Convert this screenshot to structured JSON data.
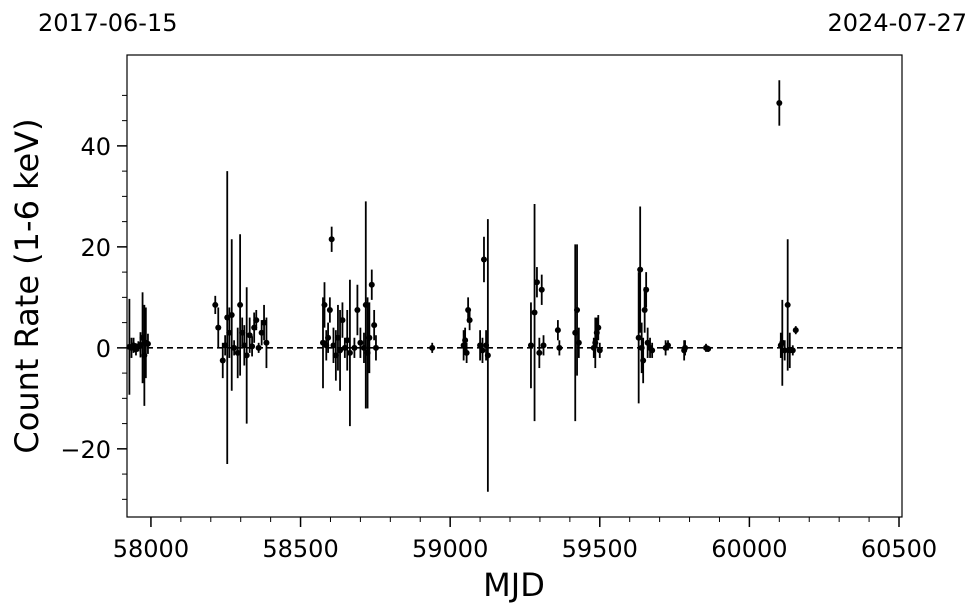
{
  "chart_data": {
    "type": "scatter",
    "title": "",
    "xlabel": "MJD",
    "ylabel": "Count Rate (1-6 keV)",
    "xlim": [
      57920,
      60510
    ],
    "ylim": [
      -33.5,
      58
    ],
    "xticks": [
      58000,
      58500,
      59000,
      59500,
      60000,
      60500
    ],
    "yticks": [
      -20,
      0,
      20,
      40
    ],
    "ytick_labels": [
      "−20",
      "0",
      "20",
      "40"
    ],
    "top_left_date": "2017-06-15",
    "top_right_date": "2024-07-27",
    "reference_line": {
      "y": 0,
      "style": "dashed"
    },
    "grid": false,
    "marker_color": "#000000",
    "points": [
      {
        "x": 57928,
        "y": 0.2,
        "err": 9.5
      },
      {
        "x": 57935,
        "y": 0.0,
        "err": 2.0
      },
      {
        "x": 57942,
        "y": 0.5,
        "err": 1.5
      },
      {
        "x": 57950,
        "y": -0.3,
        "err": 1.2
      },
      {
        "x": 57958,
        "y": 0.3,
        "err": 1.0
      },
      {
        "x": 57965,
        "y": 0.6,
        "err": 2.5
      },
      {
        "x": 57972,
        "y": 2.0,
        "err": 9.0
      },
      {
        "x": 57978,
        "y": -1.5,
        "err": 10.0
      },
      {
        "x": 57983,
        "y": 1.0,
        "err": 7.0
      },
      {
        "x": 57990,
        "y": 0.8,
        "err": 2.0
      },
      {
        "x": 58215,
        "y": 8.5,
        "err": 1.8
      },
      {
        "x": 58225,
        "y": 4.0,
        "err": 4.0
      },
      {
        "x": 58240,
        "y": -2.5,
        "err": 3.5
      },
      {
        "x": 58248,
        "y": 0.5,
        "err": 2.0
      },
      {
        "x": 58255,
        "y": 6.0,
        "err": 29.0
      },
      {
        "x": 58262,
        "y": 3.0,
        "err": 5.0
      },
      {
        "x": 58270,
        "y": 6.5,
        "err": 15.0
      },
      {
        "x": 58278,
        "y": 0.0,
        "err": 1.5
      },
      {
        "x": 58290,
        "y": -1.0,
        "err": 5.0
      },
      {
        "x": 58298,
        "y": 8.5,
        "err": 14.0
      },
      {
        "x": 58305,
        "y": 3.0,
        "err": 3.0
      },
      {
        "x": 58312,
        "y": 0.5,
        "err": 4.0
      },
      {
        "x": 58320,
        "y": -1.5,
        "err": 13.5
      },
      {
        "x": 58330,
        "y": 2.5,
        "err": 3.5
      },
      {
        "x": 58338,
        "y": 0.3,
        "err": 2.0
      },
      {
        "x": 58345,
        "y": 4.0,
        "err": 3.0
      },
      {
        "x": 58352,
        "y": 5.5,
        "err": 2.0
      },
      {
        "x": 58360,
        "y": 0.0,
        "err": 1.0
      },
      {
        "x": 58370,
        "y": 3.0,
        "err": 2.5
      },
      {
        "x": 58378,
        "y": 5.0,
        "err": 3.5
      },
      {
        "x": 58386,
        "y": 1.0,
        "err": 5.0
      },
      {
        "x": 58575,
        "y": 1.0,
        "err": 9.0
      },
      {
        "x": 58580,
        "y": 8.5,
        "err": 4.5
      },
      {
        "x": 58586,
        "y": 0.5,
        "err": 3.0
      },
      {
        "x": 58592,
        "y": 2.0,
        "err": 3.0
      },
      {
        "x": 58598,
        "y": 7.5,
        "err": 2.5
      },
      {
        "x": 58604,
        "y": 21.5,
        "err": 2.5
      },
      {
        "x": 58610,
        "y": 0.5,
        "err": 3.5
      },
      {
        "x": 58618,
        "y": -1.5,
        "err": 5.0
      },
      {
        "x": 58625,
        "y": 2.0,
        "err": 6.5
      },
      {
        "x": 58632,
        "y": -0.5,
        "err": 8.0
      },
      {
        "x": 58640,
        "y": 5.5,
        "err": 3.5
      },
      {
        "x": 58648,
        "y": 0.0,
        "err": 2.0
      },
      {
        "x": 58656,
        "y": 1.5,
        "err": 6.0
      },
      {
        "x": 58665,
        "y": -1.0,
        "err": 14.5
      },
      {
        "x": 58680,
        "y": 0.0,
        "err": 2.0
      },
      {
        "x": 58690,
        "y": 7.5,
        "err": 5.0
      },
      {
        "x": 58700,
        "y": 1.0,
        "err": 3.0
      },
      {
        "x": 58712,
        "y": 0.0,
        "err": 3.0
      },
      {
        "x": 58718,
        "y": 8.5,
        "err": 20.5
      },
      {
        "x": 58724,
        "y": -1.0,
        "err": 11.0
      },
      {
        "x": 58730,
        "y": 2.0,
        "err": 7.0
      },
      {
        "x": 58738,
        "y": 12.5,
        "err": 3.0
      },
      {
        "x": 58746,
        "y": 4.5,
        "err": 3.0
      },
      {
        "x": 58752,
        "y": 0.0,
        "err": 2.5
      },
      {
        "x": 58940,
        "y": 0.0,
        "err": 1.0
      },
      {
        "x": 59045,
        "y": 0.5,
        "err": 3.0
      },
      {
        "x": 59050,
        "y": 1.5,
        "err": 2.5
      },
      {
        "x": 59055,
        "y": -1.0,
        "err": 2.0
      },
      {
        "x": 59060,
        "y": 7.5,
        "err": 2.5
      },
      {
        "x": 59065,
        "y": 5.5,
        "err": 2.0
      },
      {
        "x": 59100,
        "y": 0.5,
        "err": 3.0
      },
      {
        "x": 59108,
        "y": -0.5,
        "err": 2.5
      },
      {
        "x": 59113,
        "y": 17.5,
        "err": 4.5
      },
      {
        "x": 59120,
        "y": 0.5,
        "err": 3.0
      },
      {
        "x": 59126,
        "y": -1.5,
        "err": 27.0
      },
      {
        "x": 59270,
        "y": 0.5,
        "err": 8.5
      },
      {
        "x": 59282,
        "y": 7.0,
        "err": 21.5
      },
      {
        "x": 59290,
        "y": 13.0,
        "err": 3.0
      },
      {
        "x": 59298,
        "y": -1.0,
        "err": 3.0
      },
      {
        "x": 59306,
        "y": 11.5,
        "err": 3.0
      },
      {
        "x": 59312,
        "y": 0.5,
        "err": 2.0
      },
      {
        "x": 59360,
        "y": 3.5,
        "err": 2.0
      },
      {
        "x": 59365,
        "y": 0.0,
        "err": 1.5
      },
      {
        "x": 59418,
        "y": 3.0,
        "err": 17.5
      },
      {
        "x": 59424,
        "y": 7.5,
        "err": 13.0
      },
      {
        "x": 59430,
        "y": 1.0,
        "err": 3.0
      },
      {
        "x": 59480,
        "y": 0.0,
        "err": 2.0
      },
      {
        "x": 59485,
        "y": 1.0,
        "err": 5.0
      },
      {
        "x": 59490,
        "y": 3.0,
        "err": 3.0
      },
      {
        "x": 59495,
        "y": 4.0,
        "err": 2.5
      },
      {
        "x": 59500,
        "y": -0.5,
        "err": 1.5
      },
      {
        "x": 59630,
        "y": 2.0,
        "err": 13.0
      },
      {
        "x": 59635,
        "y": 15.5,
        "err": 12.5
      },
      {
        "x": 59640,
        "y": 0.0,
        "err": 5.0
      },
      {
        "x": 59645,
        "y": -2.5,
        "err": 4.5
      },
      {
        "x": 59650,
        "y": 7.5,
        "err": 4.5
      },
      {
        "x": 59655,
        "y": 11.5,
        "err": 3.5
      },
      {
        "x": 59660,
        "y": 1.0,
        "err": 3.0
      },
      {
        "x": 59668,
        "y": 0.0,
        "err": 2.0
      },
      {
        "x": 59675,
        "y": -0.5,
        "err": 1.5
      },
      {
        "x": 59720,
        "y": 0.0,
        "err": 1.5
      },
      {
        "x": 59728,
        "y": 0.5,
        "err": 1.0
      },
      {
        "x": 59782,
        "y": -0.5,
        "err": 2.0
      },
      {
        "x": 59785,
        "y": 0.0,
        "err": 1.5
      },
      {
        "x": 59855,
        "y": 0.0,
        "err": 0.8
      },
      {
        "x": 59862,
        "y": -0.2,
        "err": 0.6
      },
      {
        "x": 60100,
        "y": 48.5,
        "err": 4.5
      },
      {
        "x": 60105,
        "y": 0.5,
        "err": 2.5
      },
      {
        "x": 60110,
        "y": 1.0,
        "err": 8.5
      },
      {
        "x": 60118,
        "y": -0.5,
        "err": 2.0
      },
      {
        "x": 60128,
        "y": 8.5,
        "err": 13.0
      },
      {
        "x": 60135,
        "y": -0.5,
        "err": 3.5
      },
      {
        "x": 60145,
        "y": -0.5,
        "err": 1.0
      },
      {
        "x": 60155,
        "y": 3.5,
        "err": 0.8
      }
    ]
  }
}
